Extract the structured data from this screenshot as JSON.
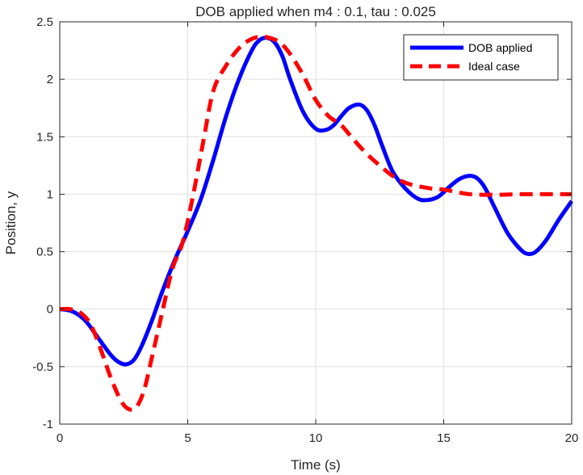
{
  "chart_data": {
    "type": "line",
    "title": "DOB applied when m4 : 0.1, tau : 0.025",
    "xlabel": "Time (s)",
    "ylabel": "Position, y",
    "xlim": [
      0,
      20
    ],
    "ylim": [
      -1,
      2.5
    ],
    "xticks": [
      0,
      5,
      10,
      15,
      20
    ],
    "xtick_labels": [
      "0",
      "5",
      "10",
      "15",
      "20"
    ],
    "yticks": [
      -1,
      -0.5,
      0,
      0.5,
      1,
      1.5,
      2,
      2.5
    ],
    "ytick_labels": [
      "-1",
      "-0.5",
      "0",
      "0.5",
      "1",
      "1.5",
      "2",
      "2.5"
    ],
    "grid": true,
    "legend_position": "top-right",
    "series": [
      {
        "name": "DOB applied",
        "color": "#0000ff",
        "style": "solid",
        "x": [
          0,
          0.5,
          1.0,
          1.5,
          2.0,
          2.3,
          2.6,
          2.9,
          3.2,
          3.6,
          4.0,
          4.5,
          5.0,
          5.5,
          6.0,
          6.5,
          7.0,
          7.5,
          7.8,
          8.1,
          8.4,
          8.7,
          9.0,
          9.5,
          10.0,
          10.4,
          10.7,
          11.0,
          11.3,
          11.7,
          12.0,
          12.3,
          12.6,
          13.0,
          13.5,
          14.0,
          14.4,
          14.8,
          15.2,
          15.6,
          16.0,
          16.3,
          16.6,
          17.0,
          17.5,
          18.0,
          18.3,
          18.6,
          19.0,
          19.5,
          20.0
        ],
        "y": [
          0,
          -0.02,
          -0.1,
          -0.25,
          -0.4,
          -0.46,
          -0.48,
          -0.44,
          -0.32,
          -0.1,
          0.15,
          0.43,
          0.68,
          0.95,
          1.3,
          1.68,
          2.0,
          2.25,
          2.34,
          2.36,
          2.32,
          2.2,
          2.0,
          1.72,
          1.57,
          1.56,
          1.6,
          1.68,
          1.75,
          1.78,
          1.73,
          1.6,
          1.42,
          1.2,
          1.05,
          0.96,
          0.95,
          0.98,
          1.06,
          1.13,
          1.16,
          1.14,
          1.06,
          0.88,
          0.66,
          0.52,
          0.48,
          0.5,
          0.6,
          0.78,
          0.94
        ]
      },
      {
        "name": "Ideal case",
        "color": "#ff0000",
        "style": "dashed",
        "x": [
          0,
          0.4,
          0.8,
          1.2,
          1.6,
          2.0,
          2.4,
          2.7,
          3.0,
          3.3,
          3.6,
          4.0,
          4.4,
          4.8,
          5.2,
          5.6,
          6.0,
          6.5,
          7.0,
          7.4,
          7.8,
          8.2,
          8.6,
          9.0,
          9.5,
          10.0,
          10.5,
          11.0,
          11.5,
          12.0,
          12.5,
          13.0,
          13.5,
          14.0,
          14.5,
          15.0,
          15.5,
          16.0,
          17.0,
          18.0,
          19.0,
          20.0
        ],
        "y": [
          0,
          0,
          -0.03,
          -0.13,
          -0.35,
          -0.6,
          -0.8,
          -0.87,
          -0.85,
          -0.7,
          -0.42,
          -0.03,
          0.35,
          0.58,
          0.98,
          1.45,
          1.9,
          2.12,
          2.27,
          2.34,
          2.37,
          2.36,
          2.32,
          2.22,
          2.04,
          1.82,
          1.68,
          1.6,
          1.47,
          1.35,
          1.25,
          1.16,
          1.1,
          1.07,
          1.05,
          1.04,
          1.02,
          1.0,
          0.995,
          1.0,
          1.0,
          1.0
        ]
      }
    ]
  }
}
